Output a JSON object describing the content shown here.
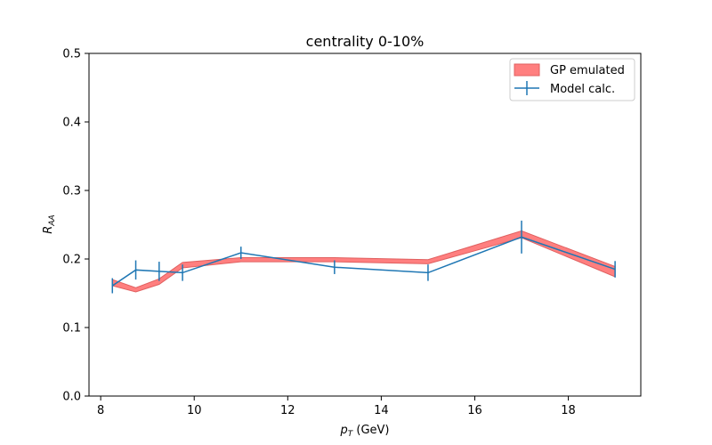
{
  "chart_data": {
    "type": "line",
    "title": "centrality 0-10%",
    "xlabel_main": "p",
    "xlabel_sub": "T",
    "xlabel_unit": " (GeV)",
    "ylabel_main": "R",
    "ylabel_sub": "AA",
    "xlim": [
      7.75,
      19.55
    ],
    "ylim": [
      0.0,
      0.5
    ],
    "xticks": [
      8,
      10,
      12,
      14,
      16,
      18
    ],
    "xtick_labels": [
      "8",
      "10",
      "12",
      "14",
      "16",
      "18"
    ],
    "yticks": [
      0.0,
      0.1,
      0.2,
      0.3,
      0.4,
      0.5
    ],
    "ytick_labels": [
      "0.0",
      "0.1",
      "0.2",
      "0.3",
      "0.4",
      "0.5"
    ],
    "legend_position": "top-right",
    "series": [
      {
        "name": "GP emulated",
        "kind": "band",
        "color": "#ff7f7f",
        "edge_color": "#e06060",
        "x": [
          8.25,
          8.75,
          9.25,
          9.75,
          11,
          13,
          15,
          17,
          19
        ],
        "lower": [
          0.161,
          0.152,
          0.163,
          0.187,
          0.196,
          0.196,
          0.193,
          0.231,
          0.174
        ],
        "upper": [
          0.17,
          0.158,
          0.171,
          0.195,
          0.202,
          0.202,
          0.199,
          0.241,
          0.189
        ]
      },
      {
        "name": "Model calc.",
        "kind": "errorbar",
        "color": "#1f77b4",
        "x": [
          8.25,
          8.75,
          9.25,
          9.75,
          11,
          13,
          15,
          17,
          19
        ],
        "y": [
          0.161,
          0.184,
          0.182,
          0.18,
          0.209,
          0.188,
          0.18,
          0.232,
          0.185
        ],
        "yerr": [
          0.011,
          0.014,
          0.014,
          0.012,
          0.009,
          0.01,
          0.012,
          0.024,
          0.012
        ]
      }
    ]
  }
}
